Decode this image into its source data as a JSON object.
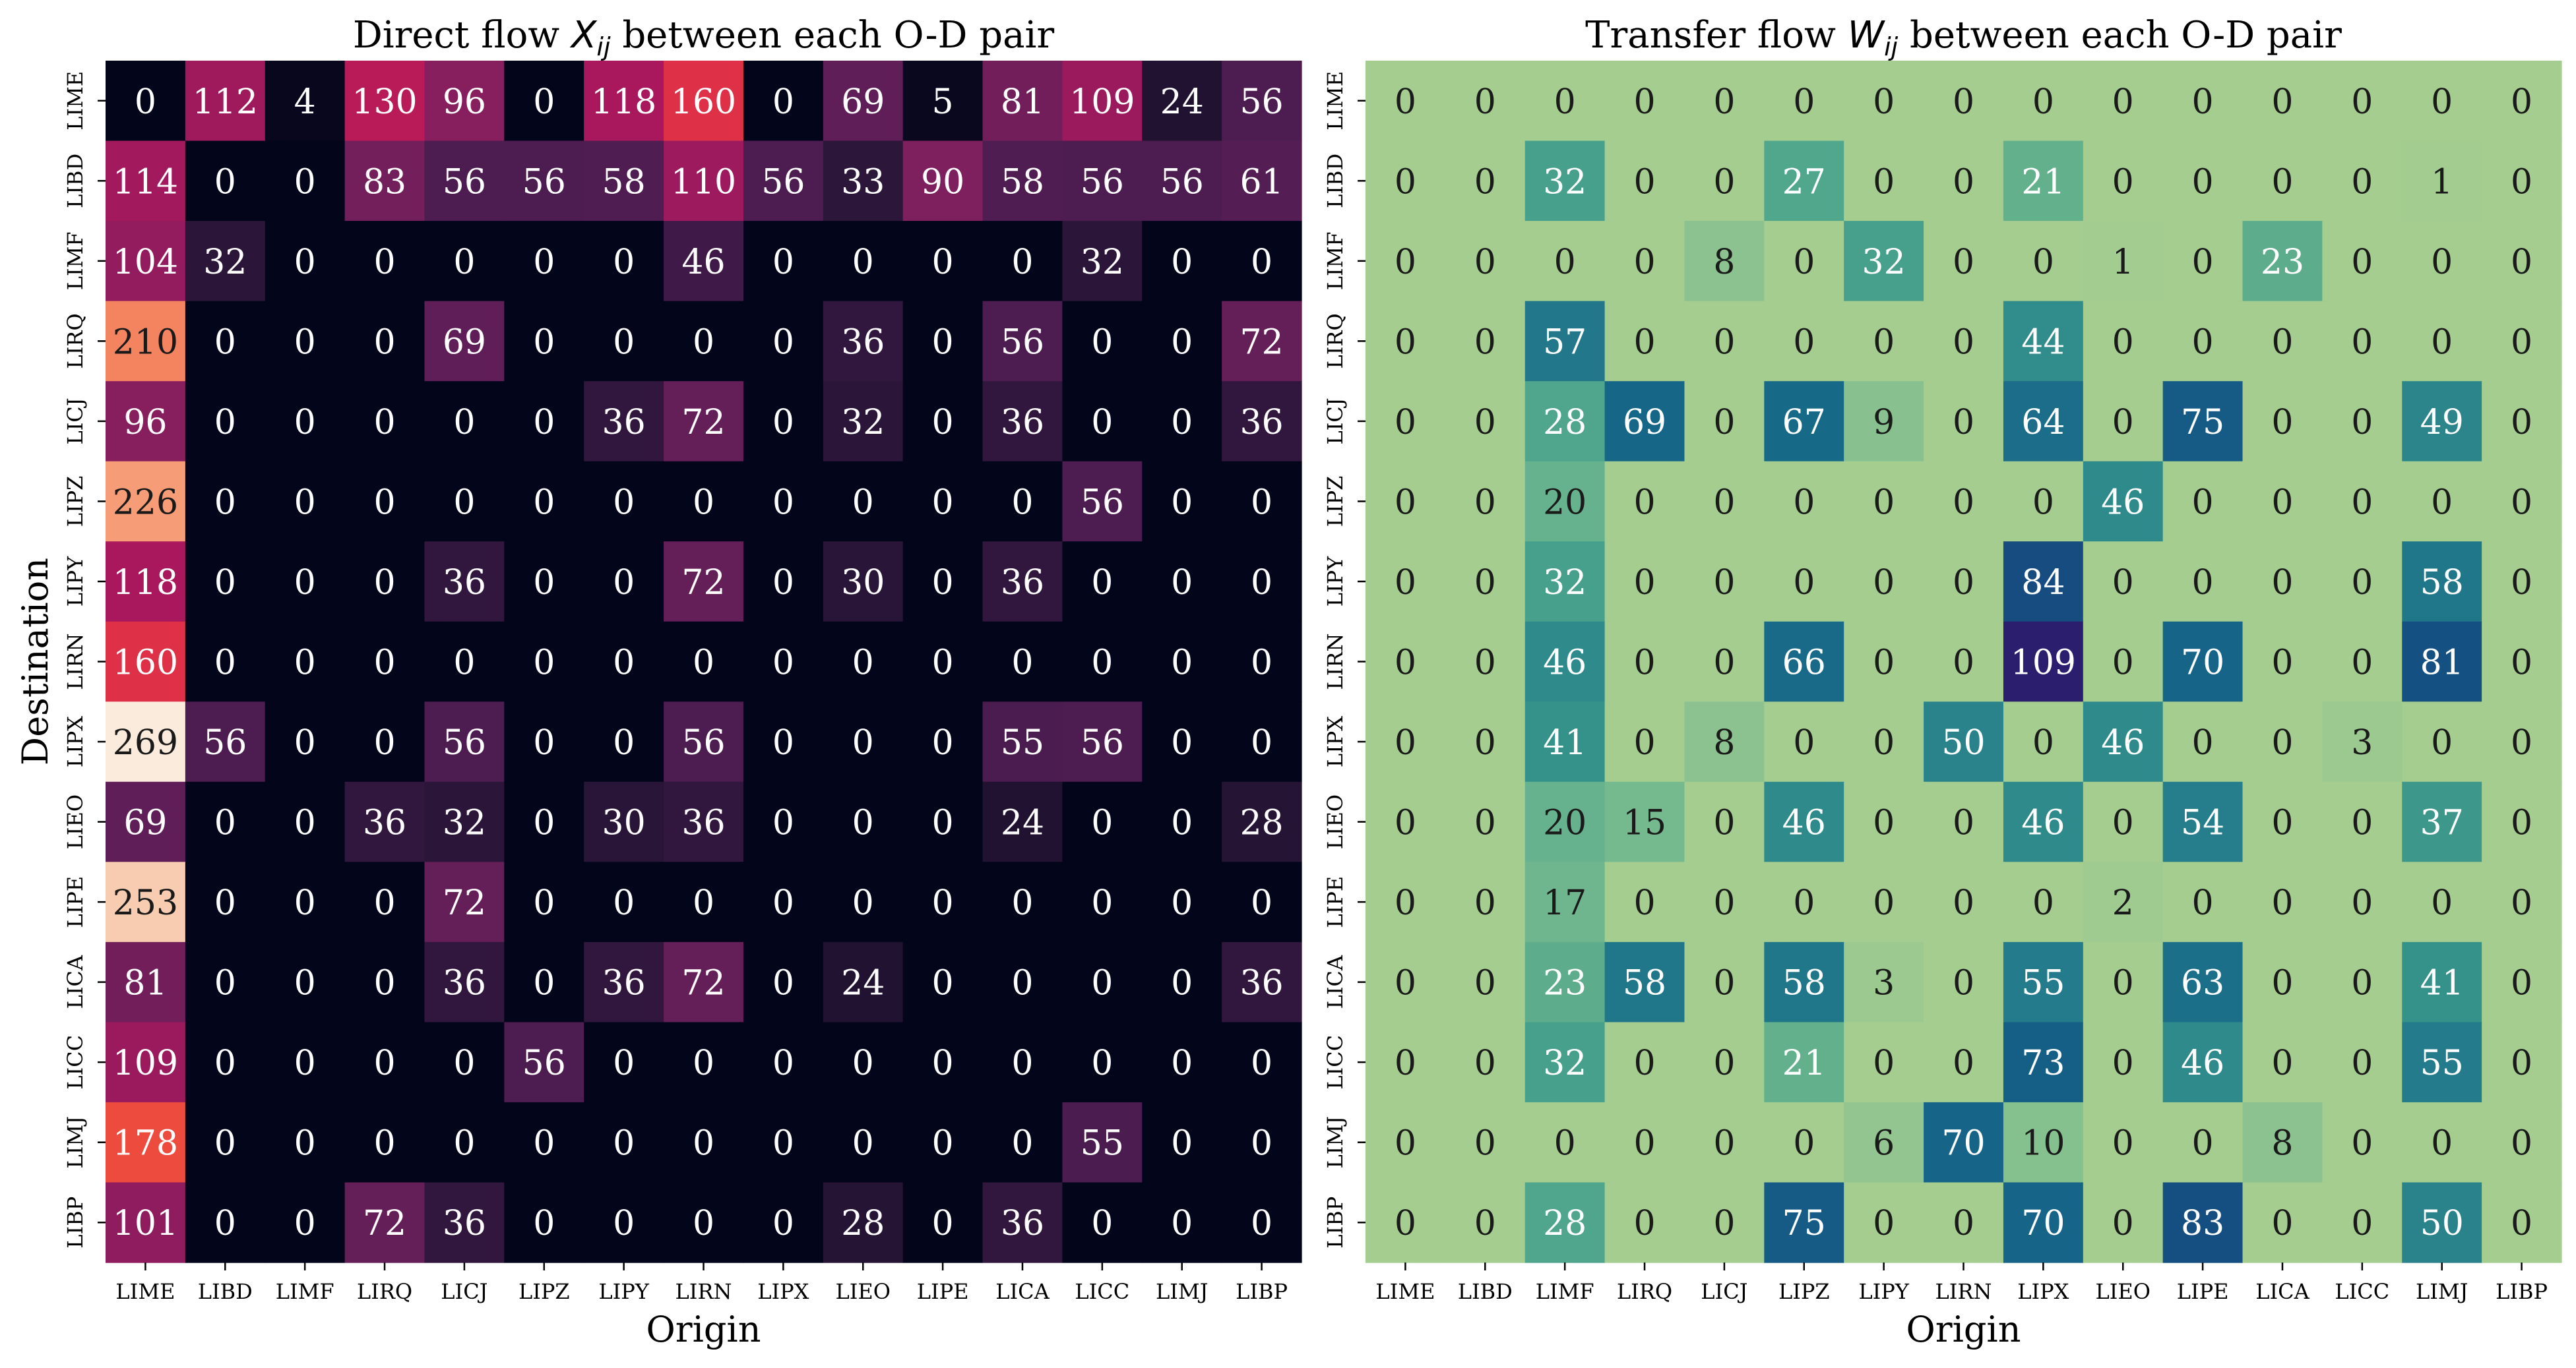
{
  "chart_data": [
    {
      "type": "heatmap",
      "title_prefix": "Direct flow ",
      "title_var": "X",
      "title_sub": "ij",
      "title_suffix": " between each O-D pair",
      "xlabel": "Origin",
      "ylabel": "Destination",
      "x_categories": [
        "LIME",
        "LIBD",
        "LIMF",
        "LIRQ",
        "LICJ",
        "LIPZ",
        "LIPY",
        "LIRN",
        "LIPX",
        "LIEO",
        "LIPE",
        "LICA",
        "LICC",
        "LIMJ",
        "LIBP"
      ],
      "y_categories": [
        "LIME",
        "LIBD",
        "LIMF",
        "LIRQ",
        "LICJ",
        "LIPZ",
        "LIPY",
        "LIRN",
        "LIPX",
        "LIEO",
        "LIPE",
        "LICA",
        "LICC",
        "LIMJ",
        "LIBP"
      ],
      "colormap": "rocket",
      "value_range": [
        0,
        269
      ],
      "values": [
        [
          0,
          112,
          4,
          130,
          96,
          0,
          118,
          160,
          0,
          69,
          5,
          81,
          109,
          24,
          56
        ],
        [
          114,
          0,
          0,
          83,
          56,
          56,
          58,
          110,
          56,
          33,
          90,
          58,
          56,
          56,
          61
        ],
        [
          104,
          32,
          0,
          0,
          0,
          0,
          0,
          46,
          0,
          0,
          0,
          0,
          32,
          0,
          0
        ],
        [
          210,
          0,
          0,
          0,
          69,
          0,
          0,
          0,
          0,
          36,
          0,
          56,
          0,
          0,
          72
        ],
        [
          96,
          0,
          0,
          0,
          0,
          0,
          36,
          72,
          0,
          32,
          0,
          36,
          0,
          0,
          36
        ],
        [
          226,
          0,
          0,
          0,
          0,
          0,
          0,
          0,
          0,
          0,
          0,
          0,
          56,
          0,
          0
        ],
        [
          118,
          0,
          0,
          0,
          36,
          0,
          0,
          72,
          0,
          30,
          0,
          36,
          0,
          0,
          0
        ],
        [
          160,
          0,
          0,
          0,
          0,
          0,
          0,
          0,
          0,
          0,
          0,
          0,
          0,
          0,
          0
        ],
        [
          269,
          56,
          0,
          0,
          56,
          0,
          0,
          56,
          0,
          0,
          0,
          55,
          56,
          0,
          0
        ],
        [
          69,
          0,
          0,
          36,
          32,
          0,
          30,
          36,
          0,
          0,
          0,
          24,
          0,
          0,
          28
        ],
        [
          253,
          0,
          0,
          0,
          72,
          0,
          0,
          0,
          0,
          0,
          0,
          0,
          0,
          0,
          0
        ],
        [
          81,
          0,
          0,
          0,
          36,
          0,
          36,
          72,
          0,
          24,
          0,
          0,
          0,
          0,
          36
        ],
        [
          109,
          0,
          0,
          0,
          0,
          56,
          0,
          0,
          0,
          0,
          0,
          0,
          0,
          0,
          0
        ],
        [
          178,
          0,
          0,
          0,
          0,
          0,
          0,
          0,
          0,
          0,
          0,
          0,
          55,
          0,
          0
        ],
        [
          101,
          0,
          0,
          72,
          36,
          0,
          0,
          0,
          0,
          28,
          0,
          36,
          0,
          0,
          0
        ]
      ]
    },
    {
      "type": "heatmap",
      "title_prefix": "Transfer flow ",
      "title_var": "W",
      "title_sub": "ij",
      "title_suffix": " between each O-D pair",
      "xlabel": "Origin",
      "ylabel": "",
      "x_categories": [
        "LIME",
        "LIBD",
        "LIMF",
        "LIRQ",
        "LICJ",
        "LIPZ",
        "LIPY",
        "LIRN",
        "LIPX",
        "LIEO",
        "LIPE",
        "LICA",
        "LICC",
        "LIMJ",
        "LIBP"
      ],
      "y_categories": [
        "LIME",
        "LIBD",
        "LIMF",
        "LIRQ",
        "LICJ",
        "LIPZ",
        "LIPY",
        "LIRN",
        "LIPX",
        "LIEO",
        "LIPE",
        "LICA",
        "LICC",
        "LIMJ",
        "LIBP"
      ],
      "colormap": "crest",
      "value_range": [
        0,
        109
      ],
      "values": [
        [
          0,
          0,
          0,
          0,
          0,
          0,
          0,
          0,
          0,
          0,
          0,
          0,
          0,
          0,
          0
        ],
        [
          0,
          0,
          32,
          0,
          0,
          27,
          0,
          0,
          21,
          0,
          0,
          0,
          0,
          1,
          0
        ],
        [
          0,
          0,
          0,
          0,
          8,
          0,
          32,
          0,
          0,
          1,
          0,
          23,
          0,
          0,
          0
        ],
        [
          0,
          0,
          57,
          0,
          0,
          0,
          0,
          0,
          44,
          0,
          0,
          0,
          0,
          0,
          0
        ],
        [
          0,
          0,
          28,
          69,
          0,
          67,
          9,
          0,
          64,
          0,
          75,
          0,
          0,
          49,
          0
        ],
        [
          0,
          0,
          20,
          0,
          0,
          0,
          0,
          0,
          0,
          46,
          0,
          0,
          0,
          0,
          0
        ],
        [
          0,
          0,
          32,
          0,
          0,
          0,
          0,
          0,
          84,
          0,
          0,
          0,
          0,
          58,
          0
        ],
        [
          0,
          0,
          46,
          0,
          0,
          66,
          0,
          0,
          109,
          0,
          70,
          0,
          0,
          81,
          0
        ],
        [
          0,
          0,
          41,
          0,
          8,
          0,
          0,
          50,
          0,
          46,
          0,
          0,
          3,
          0,
          0
        ],
        [
          0,
          0,
          20,
          15,
          0,
          46,
          0,
          0,
          46,
          0,
          54,
          0,
          0,
          37,
          0
        ],
        [
          0,
          0,
          17,
          0,
          0,
          0,
          0,
          0,
          0,
          2,
          0,
          0,
          0,
          0,
          0
        ],
        [
          0,
          0,
          23,
          58,
          0,
          58,
          3,
          0,
          55,
          0,
          63,
          0,
          0,
          41,
          0
        ],
        [
          0,
          0,
          32,
          0,
          0,
          21,
          0,
          0,
          73,
          0,
          46,
          0,
          0,
          55,
          0
        ],
        [
          0,
          0,
          0,
          0,
          0,
          0,
          6,
          70,
          10,
          0,
          0,
          8,
          0,
          0,
          0
        ],
        [
          0,
          0,
          28,
          0,
          0,
          75,
          0,
          0,
          70,
          0,
          83,
          0,
          0,
          50,
          0
        ]
      ]
    }
  ]
}
